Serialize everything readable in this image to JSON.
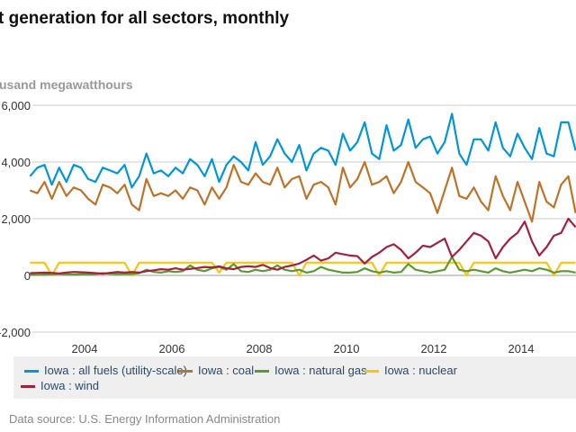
{
  "title": "t generation for all sectors, monthly",
  "source": "Data source: U.S. Energy Information Administration",
  "chart_data": {
    "type": "line",
    "title": "t generation for all sectors, monthly",
    "ylabel": "usand megawatthours",
    "ylim": [
      -2000,
      6000
    ],
    "yticks": [
      "6,000",
      "4,000",
      "2,000",
      "0",
      "-2,000"
    ],
    "ytick_values": [
      6000,
      4000,
      2000,
      0,
      -2000
    ],
    "xticks": [
      "2004",
      "2006",
      "2008",
      "2010",
      "2012",
      "2014"
    ],
    "xlim": [
      "2002-10",
      "2015-04"
    ],
    "grid": "horizontal",
    "legend_placement": "bottom",
    "x": [
      "2002-10",
      "2002-12",
      "2003-02",
      "2003-04",
      "2003-06",
      "2003-08",
      "2003-10",
      "2003-12",
      "2004-02",
      "2004-04",
      "2004-06",
      "2004-08",
      "2004-10",
      "2004-12",
      "2005-02",
      "2005-04",
      "2005-06",
      "2005-08",
      "2005-10",
      "2005-12",
      "2006-02",
      "2006-04",
      "2006-06",
      "2006-08",
      "2006-10",
      "2006-12",
      "2007-02",
      "2007-04",
      "2007-06",
      "2007-08",
      "2007-10",
      "2007-12",
      "2008-02",
      "2008-04",
      "2008-06",
      "2008-08",
      "2008-10",
      "2008-12",
      "2009-02",
      "2009-04",
      "2009-06",
      "2009-08",
      "2009-10",
      "2009-12",
      "2010-02",
      "2010-04",
      "2010-06",
      "2010-08",
      "2010-10",
      "2010-12",
      "2011-02",
      "2011-04",
      "2011-06",
      "2011-08",
      "2011-10",
      "2011-12",
      "2012-02",
      "2012-04",
      "2012-06",
      "2012-08",
      "2012-10",
      "2012-12",
      "2013-02",
      "2013-04",
      "2013-06",
      "2013-08",
      "2013-10",
      "2013-12",
      "2014-02",
      "2014-04",
      "2014-06",
      "2014-08",
      "2014-10",
      "2014-12",
      "2015-02",
      "2015-04"
    ],
    "series": [
      {
        "name": "Iowa : all fuels (utility-scale)",
        "color": "#0096d7",
        "values": [
          3500,
          3800,
          3900,
          3200,
          3800,
          3300,
          3900,
          3800,
          3400,
          3300,
          3800,
          3700,
          3600,
          3900,
          3100,
          3500,
          4300,
          3600,
          3700,
          3500,
          3800,
          3600,
          4100,
          3900,
          3500,
          4100,
          3300,
          3900,
          4200,
          4000,
          3700,
          4700,
          3900,
          4200,
          4800,
          4300,
          4000,
          4600,
          3700,
          4300,
          4500,
          4400,
          3900,
          5000,
          4400,
          4700,
          5400,
          4300,
          4100,
          5300,
          4400,
          4600,
          5500,
          4500,
          4800,
          4900,
          4300,
          4700,
          5700,
          4300,
          3900,
          4800,
          4800,
          4400,
          5400,
          4500,
          4200,
          5000,
          4500,
          4100,
          5200,
          4300,
          4200,
          5400,
          5400,
          4400
        ]
      },
      {
        "name": "Iowa : coal",
        "color": "#bd7328",
        "values": [
          3000,
          2900,
          3300,
          2700,
          3300,
          2800,
          3100,
          3000,
          2700,
          2500,
          3200,
          3100,
          2900,
          3200,
          2500,
          2300,
          3400,
          2800,
          2900,
          2800,
          3000,
          2700,
          3100,
          3000,
          2500,
          3100,
          2700,
          3100,
          3900,
          3300,
          3200,
          3600,
          3300,
          3200,
          3800,
          3100,
          3400,
          3500,
          2700,
          3200,
          3300,
          3100,
          2500,
          3800,
          3100,
          3400,
          4000,
          3200,
          3300,
          3500,
          2900,
          3300,
          4000,
          3300,
          3100,
          2900,
          2200,
          3000,
          3800,
          2800,
          2700,
          3100,
          2600,
          2300,
          3500,
          2800,
          2300,
          3300,
          2600,
          1900,
          3300,
          2600,
          2400,
          3200,
          3500,
          2200
        ]
      },
      {
        "name": "Iowa : natural gas",
        "color": "#5a9a2f",
        "values": [
          20,
          20,
          30,
          40,
          60,
          40,
          30,
          40,
          40,
          50,
          80,
          60,
          50,
          60,
          50,
          80,
          200,
          120,
          100,
          150,
          120,
          150,
          350,
          200,
          150,
          250,
          300,
          200,
          400,
          150,
          120,
          200,
          150,
          200,
          350,
          200,
          150,
          200,
          100,
          150,
          300,
          200,
          150,
          100,
          100,
          120,
          250,
          150,
          100,
          150,
          100,
          120,
          400,
          200,
          150,
          100,
          150,
          200,
          650,
          200,
          150,
          200,
          150,
          100,
          250,
          150,
          100,
          150,
          200,
          150,
          250,
          200,
          100,
          150,
          150,
          100
        ]
      },
      {
        "name": "Iowa : nuclear",
        "color": "#ffc20e",
        "values": [
          450,
          450,
          450,
          0,
          450,
          450,
          450,
          450,
          450,
          450,
          450,
          450,
          450,
          450,
          0,
          450,
          450,
          450,
          450,
          450,
          450,
          450,
          450,
          450,
          450,
          450,
          100,
          450,
          450,
          450,
          450,
          450,
          450,
          450,
          450,
          450,
          450,
          0,
          450,
          450,
          450,
          450,
          450,
          450,
          450,
          450,
          450,
          450,
          0,
          450,
          450,
          450,
          450,
          450,
          450,
          450,
          450,
          450,
          450,
          450,
          0,
          450,
          450,
          450,
          450,
          450,
          450,
          450,
          450,
          450,
          450,
          450,
          0,
          450,
          450,
          450
        ]
      },
      {
        "name": "Iowa : wind",
        "color": "#a3213c",
        "values": [
          80,
          90,
          100,
          90,
          70,
          100,
          120,
          110,
          100,
          80,
          60,
          90,
          120,
          100,
          120,
          100,
          150,
          180,
          220,
          200,
          250,
          200,
          230,
          260,
          300,
          280,
          320,
          250,
          220,
          300,
          320,
          300,
          370,
          260,
          200,
          300,
          350,
          420,
          550,
          700,
          520,
          600,
          800,
          750,
          700,
          680,
          420,
          650,
          800,
          1000,
          1100,
          900,
          600,
          800,
          1050,
          1000,
          1150,
          1300,
          650,
          900,
          1200,
          1500,
          1400,
          1200,
          600,
          1000,
          1300,
          1500,
          1900,
          1200,
          700,
          1000,
          1400,
          1500,
          2000,
          1700
        ]
      }
    ]
  }
}
